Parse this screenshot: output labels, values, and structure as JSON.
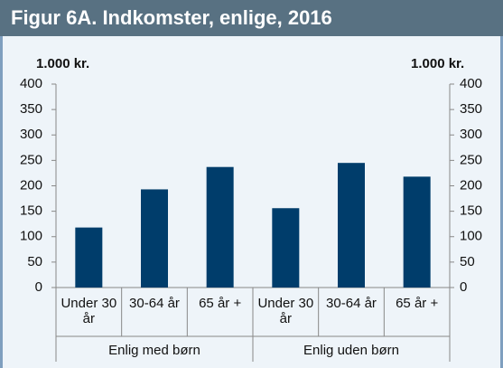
{
  "chart_data": {
    "type": "bar",
    "title": "Figur 6A. Indkomster, enlige, 2016",
    "ylabel": "1.000 kr.",
    "y2label": "1.000 kr.",
    "categories": [
      "Under 30 år",
      "30-64 år",
      "65 år +",
      "Under 30 år",
      "30-64 år",
      "65 år +"
    ],
    "group_labels": [
      "Enlig med børn",
      "Enlig uden børn"
    ],
    "values": [
      118,
      193,
      237,
      156,
      245,
      218
    ],
    "color": "#003d6b",
    "ylim": [
      0,
      400
    ],
    "yticks": [
      0,
      50,
      100,
      150,
      200,
      250,
      300,
      350,
      400
    ],
    "y2lim": [
      0,
      400
    ],
    "y2ticks": [
      0,
      50,
      100,
      150,
      200,
      250,
      300,
      350,
      400
    ],
    "grid": false
  }
}
